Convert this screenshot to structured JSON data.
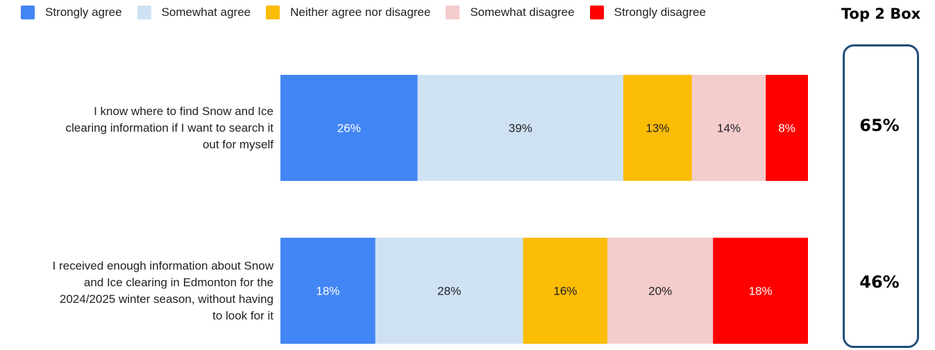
{
  "legend": [
    {
      "label": "Strongly agree",
      "color": "#4285f4"
    },
    {
      "label": "Somewhat agree",
      "color": "#cfe2f3"
    },
    {
      "label": "Neither agree nor disagree",
      "color": "#fbbc04"
    },
    {
      "label": "Somewhat disagree",
      "color": "#f4cccc"
    },
    {
      "label": "Strongly disagree",
      "color": "#ff0000"
    }
  ],
  "top2": {
    "title": "Top 2 Box",
    "values": [
      "65%",
      "46%"
    ]
  },
  "chart_data": {
    "type": "bar",
    "orientation": "horizontal",
    "stacked": true,
    "categories": [
      [
        "I know where to find Snow and Ice",
        "clearing information if I want to search it",
        "out for myself"
      ],
      [
        "I received enough information about Snow",
        "and Ice clearing in Edmonton for the",
        "2024/2025 winter season, without having",
        "to look for it"
      ]
    ],
    "series": [
      {
        "name": "Strongly agree",
        "color": "#4285f4",
        "values": [
          26,
          18
        ],
        "labels": [
          "26%",
          "18%"
        ],
        "label_color": "#ffffff"
      },
      {
        "name": "Somewhat agree",
        "color": "#cfe2f3",
        "values": [
          39,
          28
        ],
        "labels": [
          "39%",
          "28%"
        ],
        "label_color": "#202124"
      },
      {
        "name": "Neither agree nor disagree",
        "color": "#fbbc04",
        "values": [
          13,
          16
        ],
        "labels": [
          "13%",
          "16%"
        ],
        "label_color": "#202124"
      },
      {
        "name": "Somewhat disagree",
        "color": "#f4cccc",
        "values": [
          14,
          20
        ],
        "labels": [
          "14%",
          "20%"
        ],
        "label_color": "#202124"
      },
      {
        "name": "Strongly disagree",
        "color": "#ff0000",
        "values": [
          8,
          18
        ],
        "labels": [
          "8%",
          "18%"
        ],
        "label_color": "#ffffff"
      }
    ],
    "xlim": [
      0,
      100
    ],
    "grid": false,
    "legend_position": "top"
  }
}
